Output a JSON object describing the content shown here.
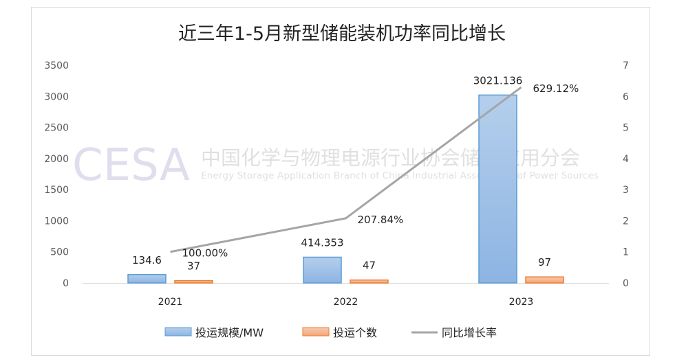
{
  "chart_data": {
    "type": "bar+line",
    "title": "近三年1-5月新型储能装机功率同比增长",
    "categories": [
      "2021",
      "2022",
      "2023"
    ],
    "series": [
      {
        "name": "投运规模/MW",
        "type": "bar",
        "axis": "left",
        "color": "#9dc3e6",
        "values": [
          134.6,
          414.353,
          3021.136
        ],
        "labels": [
          "134.6",
          "414.353",
          "3021.136"
        ]
      },
      {
        "name": "投运个数",
        "type": "bar",
        "axis": "left",
        "color": "#f4b183",
        "values": [
          37,
          47,
          97
        ],
        "labels": [
          "37",
          "47",
          "97"
        ]
      },
      {
        "name": "同比增长率",
        "type": "line",
        "axis": "right",
        "color": "#a5a5a5",
        "values": [
          1.0,
          2.0784,
          6.2912
        ],
        "labels": [
          "100.00%",
          "207.84%",
          "629.12%"
        ]
      }
    ],
    "y_left": {
      "range": [
        0,
        3500
      ],
      "ticks": [
        "0",
        "500",
        "1000",
        "1500",
        "2000",
        "2500",
        "3000",
        "3500"
      ]
    },
    "y_right": {
      "range": [
        0,
        7
      ],
      "ticks": [
        "0",
        "1",
        "2",
        "3",
        "4",
        "5",
        "6",
        "7"
      ]
    },
    "grid": false,
    "legend_position": "bottom"
  },
  "watermark": {
    "logo": "CESA",
    "cn": "中国化学与物理电源行业协会储能应用分会",
    "en": "Energy Storage Application Branch of China Industrial Association of Power Sources"
  }
}
